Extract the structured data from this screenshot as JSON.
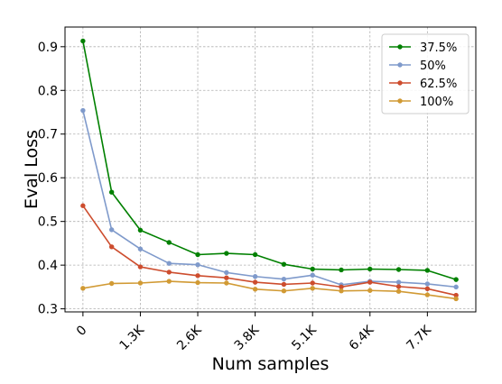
{
  "chart_data": {
    "type": "line",
    "title": "",
    "xlabel": "Num samples",
    "ylabel": "Eval Loss",
    "x": [
      0,
      640,
      1280,
      1920,
      2560,
      3200,
      3840,
      4480,
      5120,
      5760,
      6400,
      7040,
      7680,
      8320
    ],
    "xticks": [
      0,
      1280,
      2560,
      3840,
      5120,
      6400,
      7680
    ],
    "xtick_labels": [
      "0",
      "1.3K",
      "2.6K",
      "3.8K",
      "5.1K",
      "6.4K",
      "7.7K"
    ],
    "xlim": [
      -400,
      8760
    ],
    "yticks": [
      0.3,
      0.4,
      0.5,
      0.6,
      0.7,
      0.8,
      0.9
    ],
    "ytick_labels": [
      "0.3",
      "0.4",
      "0.5",
      "0.6",
      "0.7",
      "0.8",
      "0.9"
    ],
    "ylim": [
      0.293,
      0.945
    ],
    "grid": true,
    "legend_position": "top-right",
    "series": [
      {
        "name": "37.5%",
        "color": "#008000",
        "values": [
          0.913,
          0.567,
          0.48,
          0.452,
          0.424,
          0.427,
          0.424,
          0.402,
          0.391,
          0.389,
          0.391,
          0.39,
          0.388,
          0.367
        ]
      },
      {
        "name": "50%",
        "color": "#7f9acb",
        "values": [
          0.754,
          0.481,
          0.437,
          0.404,
          0.401,
          0.383,
          0.374,
          0.368,
          0.377,
          0.355,
          0.363,
          0.361,
          0.357,
          0.35
        ]
      },
      {
        "name": "62.5%",
        "color": "#cd4d2e",
        "values": [
          0.536,
          0.442,
          0.396,
          0.384,
          0.376,
          0.371,
          0.361,
          0.356,
          0.359,
          0.35,
          0.361,
          0.351,
          0.346,
          0.331
        ]
      },
      {
        "name": "100%",
        "color": "#d19a34",
        "values": [
          0.347,
          0.358,
          0.359,
          0.363,
          0.36,
          0.359,
          0.345,
          0.341,
          0.347,
          0.341,
          0.342,
          0.34,
          0.332,
          0.323
        ]
      }
    ]
  }
}
